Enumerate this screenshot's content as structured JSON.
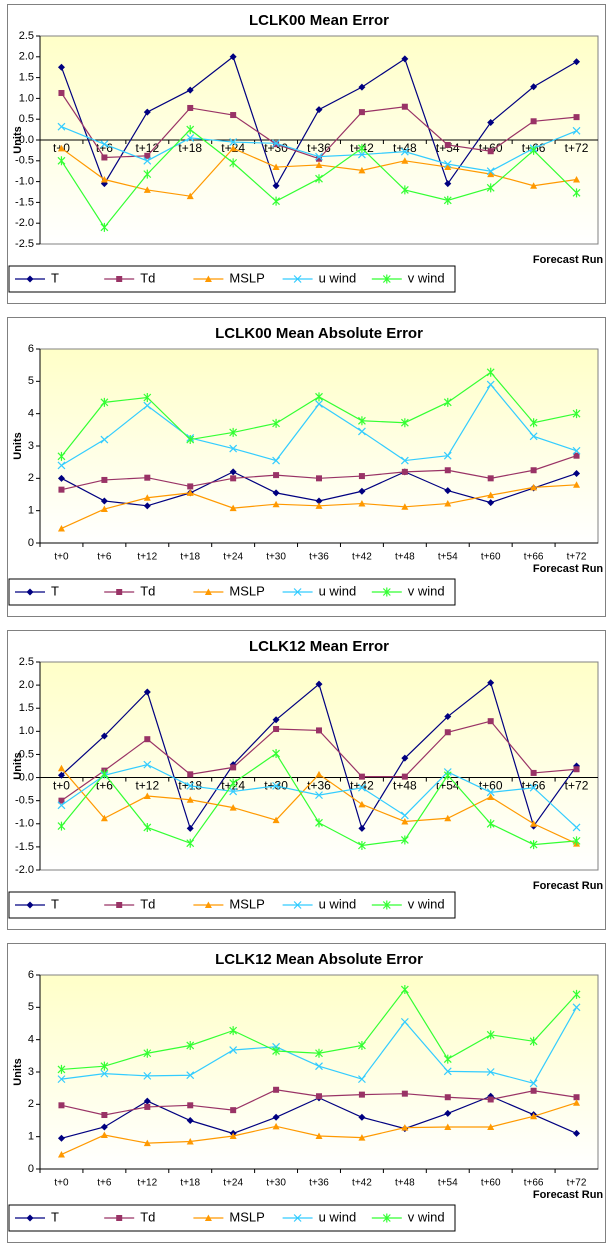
{
  "chart_data": [
    {
      "type": "line",
      "title": "LCLK00 Mean Error",
      "y_label": "Units",
      "x_label": "Forecast Run",
      "categories": [
        "t+0",
        "t+6",
        "t+12",
        "t+18",
        "t+24",
        "t+30",
        "t+36",
        "t+42",
        "t+48",
        "t+54",
        "t+60",
        "t+66",
        "t+72"
      ],
      "ylim": [
        -2.5,
        2.5
      ],
      "yticks": [
        {
          "value": -2.5,
          "label": "-2.5"
        },
        {
          "value": -2,
          "label": "-2.0"
        },
        {
          "value": -1.5,
          "label": "-1.5"
        },
        {
          "value": -1,
          "label": "-1.0"
        },
        {
          "value": -0.5,
          "label": "-0.5"
        },
        {
          "value": 0,
          "label": "0.0"
        },
        {
          "value": 0.5,
          "label": "0.5"
        },
        {
          "value": 1,
          "label": "1.0"
        },
        {
          "value": 1.5,
          "label": "1.5"
        },
        {
          "value": 2,
          "label": "2.0"
        },
        {
          "value": 2.5,
          "label": "2.5"
        }
      ],
      "grid": false,
      "series": [
        {
          "name": "T",
          "color": "#000080",
          "marker": "diamond",
          "values": [
            1.75,
            -1.05,
            0.67,
            1.2,
            2.0,
            -1.1,
            0.73,
            1.27,
            1.95,
            -1.05,
            0.42,
            1.28,
            1.88
          ]
        },
        {
          "name": "Td",
          "color": "#993366",
          "marker": "square",
          "values": [
            1.13,
            -0.42,
            -0.38,
            0.77,
            0.6,
            -0.1,
            -0.45,
            0.67,
            0.8,
            -0.12,
            -0.27,
            0.45,
            0.55
          ]
        },
        {
          "name": "MSLP",
          "color": "#FF9900",
          "marker": "triangle",
          "values": [
            -0.2,
            -0.95,
            -1.2,
            -1.35,
            -0.2,
            -0.65,
            -0.6,
            -0.73,
            -0.5,
            -0.65,
            -0.82,
            -1.1,
            -0.95
          ]
        },
        {
          "name": "u wind",
          "color": "#33CCFF",
          "marker": "x",
          "values": [
            0.32,
            -0.1,
            -0.5,
            0.05,
            -0.05,
            -0.08,
            -0.4,
            -0.35,
            -0.28,
            -0.58,
            -0.75,
            -0.2,
            0.22
          ]
        },
        {
          "name": "v wind",
          "color": "#33FF33",
          "marker": "star",
          "values": [
            -0.5,
            -2.1,
            -0.82,
            0.25,
            -0.55,
            -1.47,
            -0.93,
            -0.2,
            -1.2,
            -1.45,
            -1.15,
            -0.25,
            -1.27
          ]
        }
      ]
    },
    {
      "type": "line",
      "title": "LCLK00 Mean Absolute Error",
      "y_label": "Units",
      "x_label": "Forecast Run",
      "categories": [
        "t+0",
        "t+6",
        "t+12",
        "t+18",
        "t+24",
        "t+30",
        "t+36",
        "t+42",
        "t+48",
        "t+54",
        "t+60",
        "t+66",
        "t+72"
      ],
      "ylim": [
        0,
        6
      ],
      "yticks": [
        0,
        1,
        2,
        3,
        4,
        5,
        6
      ],
      "grid": false,
      "series": [
        {
          "name": "T",
          "color": "#000080",
          "marker": "diamond",
          "values": [
            2.0,
            1.3,
            1.15,
            1.55,
            2.2,
            1.55,
            1.3,
            1.6,
            2.2,
            1.62,
            1.25,
            1.7,
            2.15
          ]
        },
        {
          "name": "Td",
          "color": "#993366",
          "marker": "square",
          "values": [
            1.65,
            1.95,
            2.02,
            1.75,
            2.0,
            2.1,
            2.0,
            2.07,
            2.2,
            2.25,
            2.0,
            2.25,
            2.7
          ]
        },
        {
          "name": "MSLP",
          "color": "#FF9900",
          "marker": "triangle",
          "values": [
            0.45,
            1.05,
            1.4,
            1.55,
            1.08,
            1.2,
            1.15,
            1.22,
            1.12,
            1.22,
            1.48,
            1.72,
            1.8
          ]
        },
        {
          "name": "u wind",
          "color": "#33CCFF",
          "marker": "x",
          "values": [
            2.4,
            3.2,
            4.25,
            3.25,
            2.92,
            2.55,
            4.3,
            3.45,
            2.55,
            2.7,
            4.9,
            3.3,
            2.85
          ]
        },
        {
          "name": "v wind",
          "color": "#33FF33",
          "marker": "star",
          "values": [
            2.68,
            4.35,
            4.5,
            3.2,
            3.42,
            3.7,
            4.52,
            3.78,
            3.72,
            4.35,
            5.28,
            3.72,
            4.0
          ]
        }
      ]
    },
    {
      "type": "line",
      "title": "LCLK12 Mean Error",
      "y_label": "Units",
      "x_label": "Forecast Run",
      "categories": [
        "t+0",
        "t+6",
        "t+12",
        "t+18",
        "t+24",
        "t+30",
        "t+36",
        "t+42",
        "t+48",
        "t+54",
        "t+60",
        "t+66",
        "t+72"
      ],
      "ylim": [
        -2,
        2.5
      ],
      "yticks": [
        {
          "value": -2,
          "label": "-2.0"
        },
        {
          "value": -1.5,
          "label": "-1.5"
        },
        {
          "value": -1,
          "label": "-1.0"
        },
        {
          "value": -0.5,
          "label": "-0.5"
        },
        {
          "value": 0,
          "label": "0.0"
        },
        {
          "value": 0.5,
          "label": "0.5"
        },
        {
          "value": 1,
          "label": "1.0"
        },
        {
          "value": 1.5,
          "label": "1.5"
        },
        {
          "value": 2,
          "label": "2.0"
        },
        {
          "value": 2.5,
          "label": "2.5"
        }
      ],
      "grid": false,
      "series": [
        {
          "name": "T",
          "color": "#000080",
          "marker": "diamond",
          "values": [
            0.05,
            0.9,
            1.85,
            -1.1,
            0.28,
            1.25,
            2.02,
            -1.1,
            0.42,
            1.32,
            2.05,
            -1.05,
            0.25
          ]
        },
        {
          "name": "Td",
          "color": "#993366",
          "marker": "square",
          "values": [
            -0.5,
            0.15,
            0.83,
            0.07,
            0.22,
            1.05,
            1.02,
            0.02,
            0.02,
            0.98,
            1.22,
            0.1,
            0.18
          ]
        },
        {
          "name": "MSLP",
          "color": "#FF9900",
          "marker": "triangle",
          "values": [
            0.2,
            -0.88,
            -0.4,
            -0.48,
            -0.65,
            -0.92,
            0.07,
            -0.58,
            -0.95,
            -0.88,
            -0.42,
            -1.0,
            -1.43
          ]
        },
        {
          "name": "u wind",
          "color": "#33CCFF",
          "marker": "x",
          "values": [
            -0.6,
            0.05,
            0.28,
            -0.18,
            -0.3,
            -0.18,
            -0.38,
            -0.22,
            -0.82,
            0.12,
            -0.32,
            -0.22,
            -1.08
          ]
        },
        {
          "name": "v wind",
          "color": "#33FF33",
          "marker": "star",
          "values": [
            -1.05,
            0.08,
            -1.08,
            -1.42,
            -0.12,
            0.52,
            -0.98,
            -1.47,
            -1.35,
            0.05,
            -1.0,
            -1.45,
            -1.37
          ]
        }
      ]
    },
    {
      "type": "line",
      "title": "LCLK12 Mean Absolute Error",
      "y_label": "Units",
      "x_label": "Forecast Run",
      "categories": [
        "t+0",
        "t+6",
        "t+12",
        "t+18",
        "t+24",
        "t+30",
        "t+36",
        "t+42",
        "t+48",
        "t+54",
        "t+60",
        "t+66",
        "t+72"
      ],
      "ylim": [
        0,
        6
      ],
      "yticks": [
        0,
        1,
        2,
        3,
        4,
        5,
        6
      ],
      "grid": false,
      "series": [
        {
          "name": "T",
          "color": "#000080",
          "marker": "diamond",
          "values": [
            0.95,
            1.3,
            2.1,
            1.5,
            1.1,
            1.6,
            2.2,
            1.6,
            1.25,
            1.72,
            2.25,
            1.68,
            1.1
          ]
        },
        {
          "name": "Td",
          "color": "#993366",
          "marker": "square",
          "values": [
            1.97,
            1.67,
            1.92,
            1.97,
            1.82,
            2.45,
            2.25,
            2.3,
            2.33,
            2.22,
            2.15,
            2.42,
            2.22
          ]
        },
        {
          "name": "MSLP",
          "color": "#FF9900",
          "marker": "triangle",
          "values": [
            0.45,
            1.05,
            0.8,
            0.85,
            1.02,
            1.32,
            1.02,
            0.97,
            1.28,
            1.3,
            1.3,
            1.63,
            2.05
          ]
        },
        {
          "name": "u wind",
          "color": "#33CCFF",
          "marker": "x",
          "values": [
            2.78,
            2.95,
            2.88,
            2.9,
            3.68,
            3.78,
            3.18,
            2.78,
            4.55,
            3.02,
            3.0,
            2.65,
            5.0
          ]
        },
        {
          "name": "v wind",
          "color": "#33FF33",
          "marker": "star",
          "values": [
            3.08,
            3.18,
            3.58,
            3.82,
            4.28,
            3.65,
            3.58,
            3.82,
            5.55,
            3.4,
            4.15,
            3.95,
            5.4
          ]
        }
      ]
    }
  ]
}
